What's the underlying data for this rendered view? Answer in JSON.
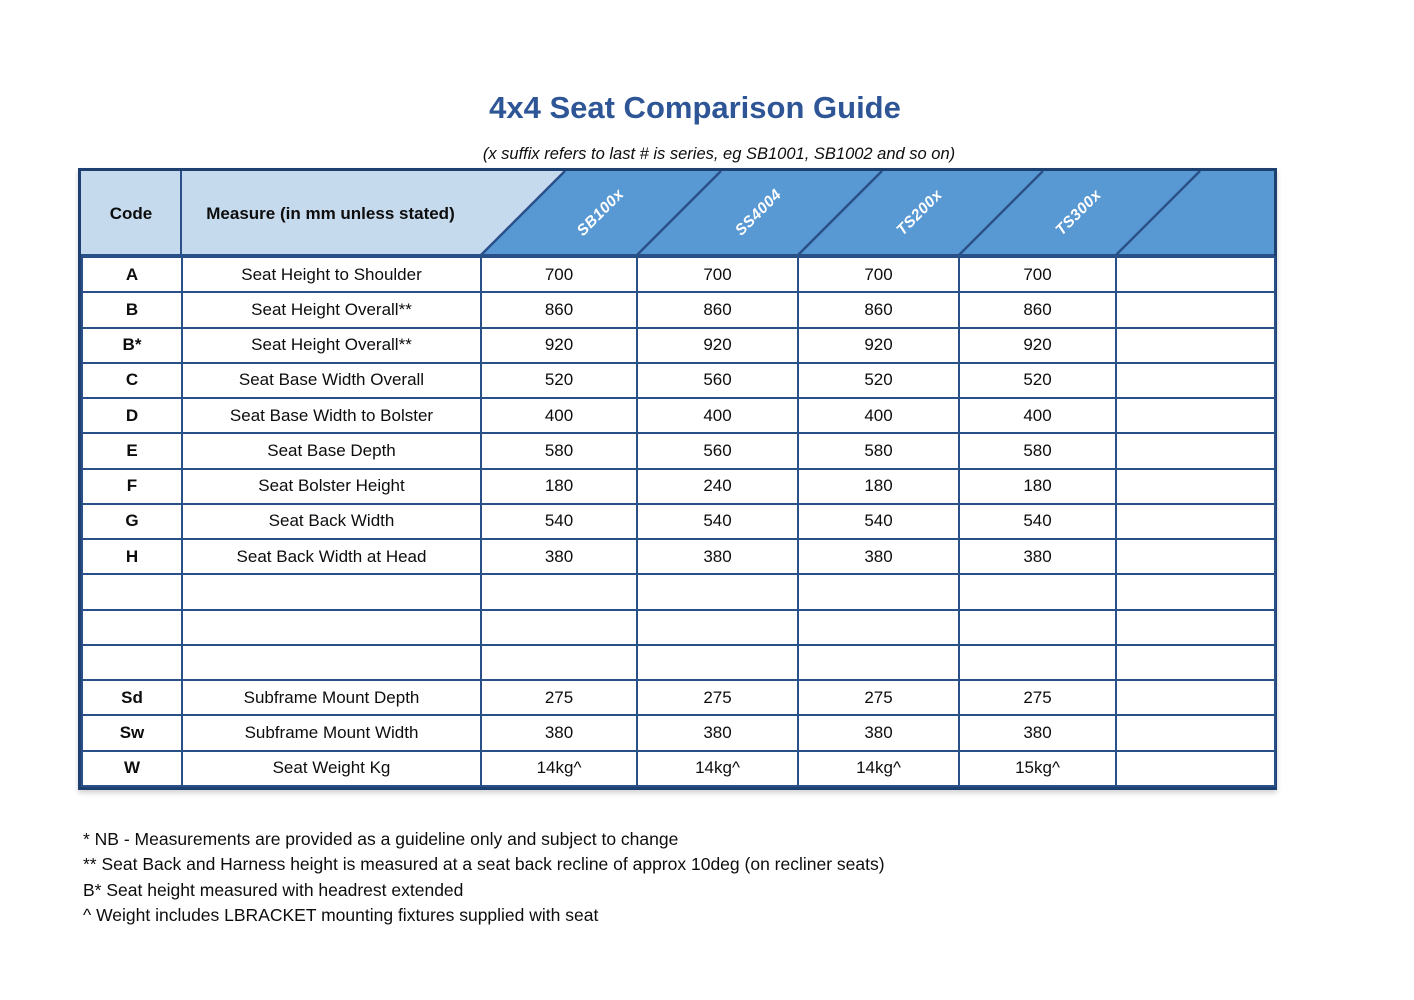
{
  "title": "4x4 Seat Comparison Guide",
  "subtitle": "(x suffix refers to last # is series, eg SB1001, SB1002 and so on)",
  "table": {
    "code_header": "Code",
    "measure_header": "Measure (in mm unless stated)",
    "products": [
      "SB100x",
      "SS4004",
      "TS200x",
      "TS300x"
    ],
    "rows": [
      {
        "code": "A",
        "measure": "Seat Height to Shoulder",
        "values": [
          "700",
          "700",
          "700",
          "700",
          ""
        ]
      },
      {
        "code": "B",
        "measure": "Seat Height Overall**",
        "values": [
          "860",
          "860",
          "860",
          "860",
          ""
        ]
      },
      {
        "code": "B*",
        "measure": "Seat Height Overall**",
        "values": [
          "920",
          "920",
          "920",
          "920",
          ""
        ]
      },
      {
        "code": "C",
        "measure": "Seat Base Width Overall",
        "values": [
          "520",
          "560",
          "520",
          "520",
          ""
        ]
      },
      {
        "code": "D",
        "measure": "Seat Base Width to Bolster",
        "values": [
          "400",
          "400",
          "400",
          "400",
          ""
        ]
      },
      {
        "code": "E",
        "measure": "Seat Base Depth",
        "values": [
          "580",
          "560",
          "580",
          "580",
          ""
        ]
      },
      {
        "code": "F",
        "measure": "Seat Bolster Height",
        "values": [
          "180",
          "240",
          "180",
          "180",
          ""
        ]
      },
      {
        "code": "G",
        "measure": "Seat Back Width",
        "values": [
          "540",
          "540",
          "540",
          "540",
          ""
        ]
      },
      {
        "code": "H",
        "measure": "Seat Back Width at Head",
        "values": [
          "380",
          "380",
          "380",
          "380",
          ""
        ]
      },
      {
        "code": "",
        "measure": "",
        "values": [
          "",
          "",
          "",
          "",
          ""
        ]
      },
      {
        "code": "",
        "measure": "",
        "values": [
          "",
          "",
          "",
          "",
          ""
        ]
      },
      {
        "code": "",
        "measure": "",
        "values": [
          "",
          "",
          "",
          "",
          ""
        ]
      },
      {
        "code": "Sd",
        "measure": "Subframe Mount Depth",
        "values": [
          "275",
          "275",
          "275",
          "275",
          ""
        ]
      },
      {
        "code": "Sw",
        "measure": "Subframe Mount Width",
        "values": [
          "380",
          "380",
          "380",
          "380",
          ""
        ]
      },
      {
        "code": "W",
        "measure": "Seat Weight Kg",
        "values": [
          "14kg^",
          "14kg^",
          "14kg^",
          "15kg^",
          ""
        ]
      }
    ]
  },
  "footnotes": [
    "* NB - Measurements are provided as a guideline only and subject to change",
    "** Seat Back and Harness height is measured at a seat back recline of approx 10deg (on recliner seats)",
    "B* Seat height measured with headrest extended",
    "^ Weight includes LBRACKET mounting fixtures supplied with seat"
  ],
  "colors": {
    "title_blue": "#2e5596",
    "header_light_blue": "#c6daed",
    "header_dark_blue": "#5999d3",
    "outer_border_navy": "#1d4070",
    "grid_line_blue": "#2a5089",
    "header_label_white": "#ffffff"
  }
}
